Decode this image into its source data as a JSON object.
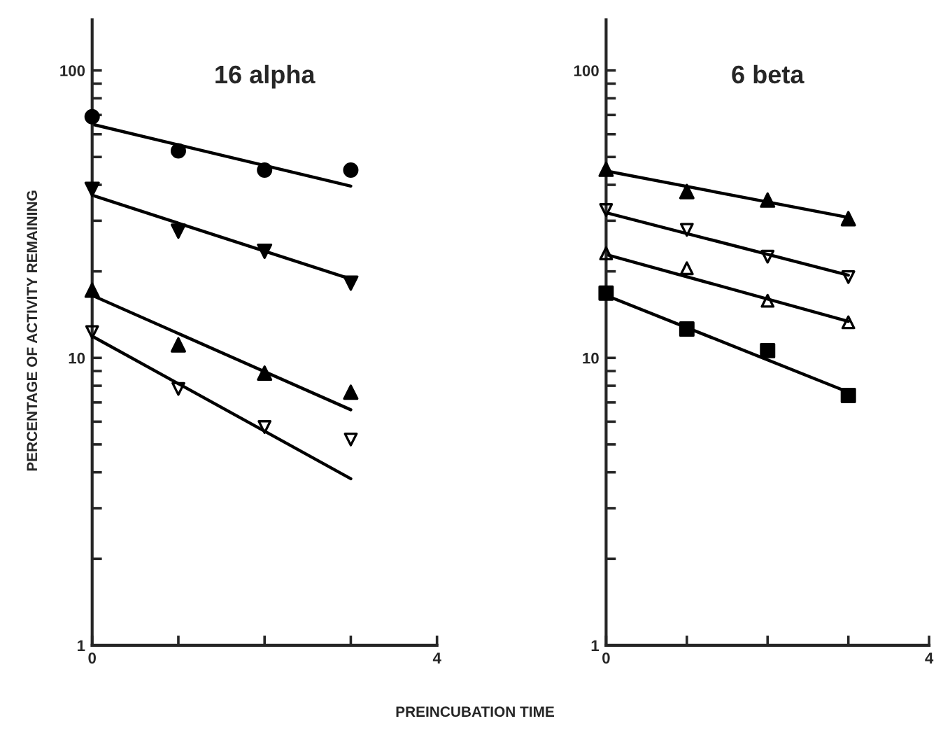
{
  "chart_data": [
    {
      "type": "scatter",
      "title": "16 alpha",
      "ylabel": "PERCENTAGE OF ACTIVITY REMAINING",
      "xlabel": "PREINCUBATION TIME",
      "log": true,
      "xlim": [
        0,
        4
      ],
      "ylim": [
        1,
        150
      ],
      "xticks": [
        0,
        {
          "value": 1,
          "label": null
        },
        {
          "value": 2,
          "label": null
        },
        {
          "value": 3,
          "label": null
        },
        4
      ],
      "yticks": [
        1,
        {
          "value": 2,
          "label": null
        },
        {
          "value": 3,
          "label": null
        },
        {
          "value": 4,
          "label": null
        },
        {
          "value": 5,
          "label": null
        },
        {
          "value": 6,
          "label": null
        },
        {
          "value": 7,
          "label": null
        },
        {
          "value": 8,
          "label": null
        },
        {
          "value": 9,
          "label": null
        },
        10,
        {
          "value": 20,
          "label": null
        },
        {
          "value": 30,
          "label": null
        },
        {
          "value": 40,
          "label": null
        },
        {
          "value": 50,
          "label": null
        },
        {
          "value": 60,
          "label": null
        },
        {
          "value": 70,
          "label": null
        },
        {
          "value": 80,
          "label": null
        },
        {
          "value": 90,
          "label": null
        },
        100
      ],
      "grid": false,
      "legend": false,
      "series": [
        {
          "type": "scatter",
          "marker": "circle",
          "color": "#000000",
          "x": [
            0,
            1,
            2,
            3
          ],
          "values": [
            69,
            52.5,
            45,
            45
          ]
        },
        {
          "type": "scatter",
          "marker": "triangle_down",
          "color": "#000000",
          "x": [
            0,
            1,
            2,
            3
          ],
          "values": [
            38.6,
            27.6,
            23.5,
            18.2
          ]
        },
        {
          "type": "scatter",
          "marker": "triangle",
          "color": "#000000",
          "x": [
            0,
            1,
            2,
            3
          ],
          "values": [
            17.2,
            11.1,
            8.85,
            7.6
          ]
        },
        {
          "type": "scatter",
          "marker": "triangle_down_open",
          "color": "#000000",
          "x": [
            0,
            1,
            2,
            3
          ],
          "values": [
            12.3,
            7.8,
            5.75,
            5.2
          ]
        },
        {
          "type": "line",
          "marker": "none",
          "line_style": "solid",
          "color": "#000000",
          "x": [
            0,
            3
          ],
          "values": [
            65,
            39.6
          ]
        },
        {
          "type": "line",
          "marker": "none",
          "line_style": "solid",
          "color": "#000000",
          "x": [
            0,
            3
          ],
          "values": [
            36.8,
            18.8
          ]
        },
        {
          "type": "line",
          "marker": "none",
          "line_style": "solid",
          "color": "#000000",
          "x": [
            0,
            3
          ],
          "values": [
            16.5,
            6.6
          ]
        },
        {
          "type": "line",
          "marker": "none",
          "line_style": "solid",
          "color": "#000000",
          "x": [
            0,
            3
          ],
          "values": [
            11.9,
            3.8
          ]
        }
      ]
    },
    {
      "type": "scatter",
      "title": "6 beta",
      "log": true,
      "xlim": [
        0,
        4
      ],
      "ylim": [
        1,
        150
      ],
      "xticks": [
        0,
        {
          "value": 1,
          "label": null
        },
        {
          "value": 2,
          "label": null
        },
        {
          "value": 3,
          "label": null
        },
        4
      ],
      "yticks": [
        1,
        {
          "value": 2,
          "label": null
        },
        {
          "value": 3,
          "label": null
        },
        {
          "value": 4,
          "label": null
        },
        {
          "value": 5,
          "label": null
        },
        {
          "value": 6,
          "label": null
        },
        {
          "value": 7,
          "label": null
        },
        {
          "value": 8,
          "label": null
        },
        {
          "value": 9,
          "label": null
        },
        10,
        {
          "value": 20,
          "label": null
        },
        {
          "value": 30,
          "label": null
        },
        {
          "value": 40,
          "label": null
        },
        {
          "value": 50,
          "label": null
        },
        {
          "value": 60,
          "label": null
        },
        {
          "value": 70,
          "label": null
        },
        {
          "value": 80,
          "label": null
        },
        {
          "value": 90,
          "label": null
        },
        100
      ],
      "grid": false,
      "legend": false,
      "series": [
        {
          "type": "scatter",
          "marker": "triangle",
          "color": "#000000",
          "x": [
            0,
            1,
            2,
            3
          ],
          "values": [
            45.3,
            37.9,
            35.4,
            30.5
          ]
        },
        {
          "type": "scatter",
          "marker": "triangle_down_open",
          "color": "#000000",
          "x": [
            0,
            1,
            2,
            3
          ],
          "values": [
            32.7,
            27.9,
            22.5,
            19.1
          ]
        },
        {
          "type": "scatter",
          "marker": "triangle_open",
          "color": "#000000",
          "x": [
            0,
            1,
            2,
            3
          ],
          "values": [
            23.1,
            20.5,
            15.8,
            13.3
          ]
        },
        {
          "type": "scatter",
          "marker": "square",
          "color": "#000000",
          "x": [
            0,
            1,
            2,
            3
          ],
          "values": [
            16.8,
            12.6,
            10.6,
            7.4
          ]
        },
        {
          "type": "line",
          "marker": "none",
          "line_style": "solid",
          "color": "#000000",
          "x": [
            0,
            3
          ],
          "values": [
            44.7,
            30.8
          ]
        },
        {
          "type": "line",
          "marker": "none",
          "line_style": "solid",
          "color": "#000000",
          "x": [
            0,
            3
          ],
          "values": [
            32,
            19.4
          ]
        },
        {
          "type": "line",
          "marker": "none",
          "line_style": "solid",
          "color": "#000000",
          "x": [
            0,
            3
          ],
          "values": [
            22.9,
            13.4
          ]
        },
        {
          "type": "line",
          "marker": "none",
          "line_style": "solid",
          "color": "#000000",
          "x": [
            0,
            3
          ],
          "values": [
            16.5,
            7.6
          ]
        }
      ]
    }
  ]
}
